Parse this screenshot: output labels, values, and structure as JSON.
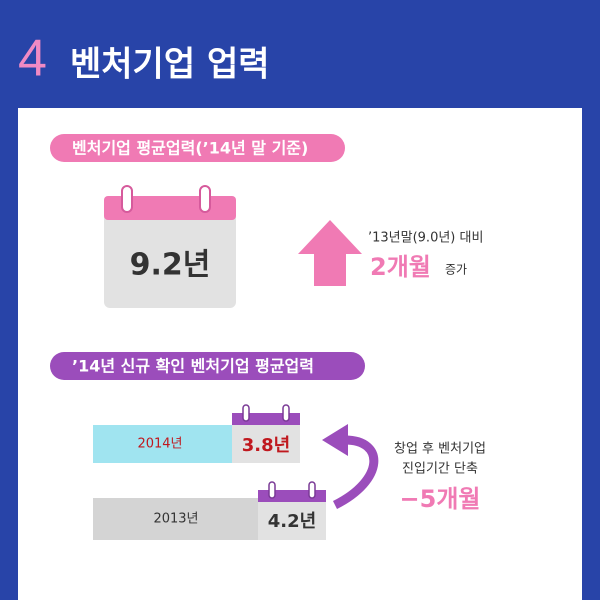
{
  "header": {
    "number": "4",
    "title": "벤처기업 업력"
  },
  "section1": {
    "title": "벤처기업 평균업력(’14년 말 기준)",
    "value": "9.2년",
    "comparison": "’13년말(9.0년) 대비",
    "change": "2개월",
    "change_suffix": "증가"
  },
  "section2": {
    "title": "’14년 신규 확인 벤처기업 평균업력",
    "rows": [
      {
        "label": "2014년",
        "value": "3.8년"
      },
      {
        "label": "2013년",
        "value": "4.2년"
      }
    ],
    "note": [
      "창업 후 벤처기업",
      "진입기간 단축"
    ],
    "change": "−5개월"
  }
}
